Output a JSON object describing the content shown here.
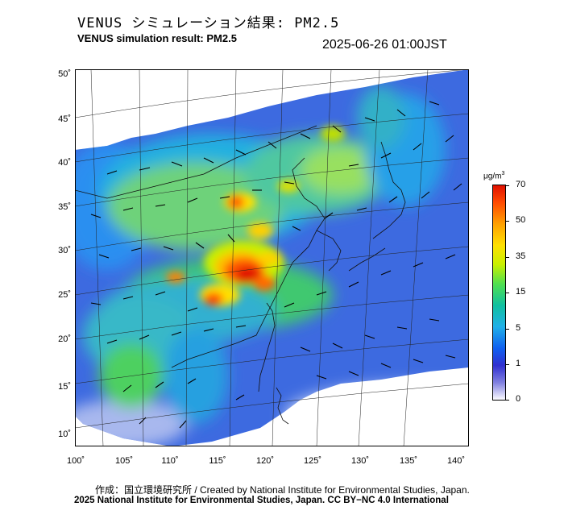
{
  "title_jp": "VENUS シミュレーション結果: PM2.5",
  "title_en": "VENUS simulation result: PM2.5",
  "timestamp": "2025-06-26 01:00JST",
  "axes": {
    "lat_labels": [
      "50˚",
      "45˚",
      "40˚",
      "35˚",
      "30˚",
      "25˚",
      "20˚",
      "15˚",
      "10˚"
    ],
    "lon_labels": [
      "100˚",
      "105˚",
      "110˚",
      "115˚",
      "120˚",
      "125˚",
      "130˚",
      "135˚",
      "140˚"
    ]
  },
  "colorbar": {
    "unit": "μg/m",
    "unit_exp": "3",
    "labels": [
      "70",
      "50",
      "35",
      "15",
      "5",
      "1",
      "0"
    ],
    "colors": [
      "#e01000",
      "#ffa000",
      "#ffe000",
      "#50e050",
      "#20b0e8",
      "#1060f0",
      "#fafaff"
    ]
  },
  "credit": "作成：国立環境研究所 / Created by National Institute for Environmental Studies, Japan.",
  "copyright": "2025 National Institute for Environmental Studies, Japan. CC BY−NC 4.0 International"
}
